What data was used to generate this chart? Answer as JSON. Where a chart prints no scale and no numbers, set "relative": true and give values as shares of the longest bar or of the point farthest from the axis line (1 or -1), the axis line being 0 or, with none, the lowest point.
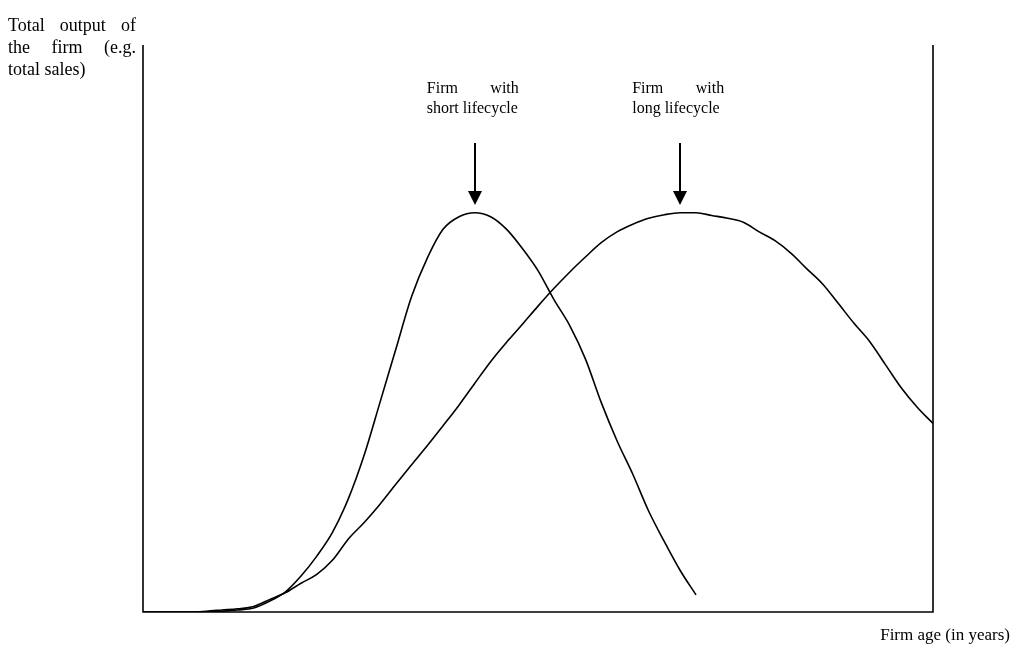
{
  "chart_data": {
    "type": "line",
    "relative": true,
    "annotations": [
      "Firm with short lifecycle",
      "Firm with long lifecycle",
      "Total output of the firm (e.g. total sales)"
    ],
    "xlabel": "Firm age (in years)",
    "legend": false,
    "categories": [
      null,
      null,
      null,
      null,
      null,
      null,
      null,
      null,
      null,
      null,
      null,
      null,
      null,
      null,
      null,
      null,
      null,
      null,
      null,
      null,
      null,
      null,
      null,
      null,
      null,
      null,
      null,
      null,
      null,
      null,
      null,
      null,
      null,
      null,
      null,
      null,
      null,
      null,
      null,
      null,
      null,
      null,
      null,
      null,
      null,
      null,
      null,
      null,
      null,
      null,
      null
    ],
    "series": [
      {
        "color": "#000000",
        "values": [
          0,
          0,
          0,
          0,
          0,
          0.002,
          0.005,
          0.01,
          0.027,
          0.05,
          0.09,
          0.14,
          0.2,
          0.284,
          0.393,
          0.525,
          0.658,
          0.79,
          0.887,
          0.959,
          0.99,
          1,
          0.99,
          0.959,
          0.911,
          0.855,
          0.783,
          0.718,
          0.634,
          0.525,
          0.429,
          0.345,
          0.253,
          0.176,
          0.104,
          0.043,
          null,
          null,
          null,
          null,
          null,
          null,
          null,
          null,
          null,
          null,
          null,
          null,
          null,
          null,
          null
        ]
      },
      {
        "color": "#000000",
        "values": [
          0,
          0,
          0,
          0,
          0.002,
          0.005,
          0.008,
          0.014,
          0.031,
          0.048,
          0.072,
          0.094,
          0.13,
          0.183,
          0.224,
          0.27,
          0.32,
          0.369,
          0.417,
          0.467,
          0.518,
          0.573,
          0.627,
          0.675,
          0.72,
          0.766,
          0.81,
          0.851,
          0.889,
          0.925,
          0.952,
          0.971,
          0.986,
          0.995,
          1,
          1,
          0.993,
          0.986,
          0.976,
          0.952,
          0.93,
          0.899,
          0.86,
          0.822,
          0.773,
          0.723,
          0.677,
          0.619,
          0.561,
          0.513,
          0.472
        ]
      }
    ]
  }
}
